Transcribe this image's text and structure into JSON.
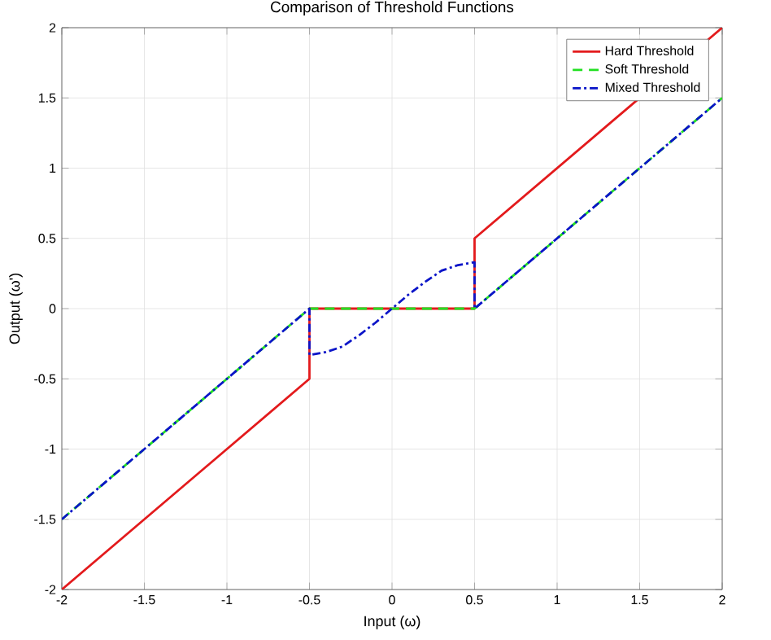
{
  "chart_data": {
    "type": "line",
    "title": "Comparison of Threshold Functions",
    "xlabel": "Input (ω)",
    "ylabel": "Output (ω')",
    "xlim": [
      -2,
      2
    ],
    "ylim": [
      -2,
      2
    ],
    "xticks": [
      -2,
      -1.5,
      -1,
      -0.5,
      0,
      0.5,
      1,
      1.5,
      2
    ],
    "yticks": [
      -2,
      -1.5,
      -1,
      -0.5,
      0,
      0.5,
      1,
      1.5,
      2
    ],
    "grid": true,
    "legend": "top right",
    "marker": "none",
    "series": [
      {
        "name": "Hard Threshold",
        "color": "#e31a1c",
        "line_style": "solid",
        "x": [
          -2,
          -0.5,
          -0.5,
          0.5,
          0.5,
          2
        ],
        "values": [
          -2,
          -0.5,
          0,
          0,
          0.5,
          2
        ]
      },
      {
        "name": "Soft Threshold",
        "color": "#22e022",
        "line_style": "dashed",
        "x": [
          -2,
          -0.5,
          0.5,
          2
        ],
        "values": [
          -1.5,
          0,
          0,
          1.5
        ]
      },
      {
        "name": "Mixed Threshold",
        "color": "#0a14c8",
        "line_style": "dashdot",
        "x": [
          -2,
          -0.5,
          -0.5,
          -0.4,
          -0.3,
          -0.2,
          -0.1,
          0,
          0.1,
          0.2,
          0.3,
          0.4,
          0.5,
          0.5,
          2
        ],
        "values": [
          -1.5,
          0,
          -0.33,
          -0.31,
          -0.27,
          -0.19,
          -0.1,
          0,
          0.1,
          0.19,
          0.27,
          0.31,
          0.33,
          0,
          1.5
        ]
      }
    ]
  }
}
